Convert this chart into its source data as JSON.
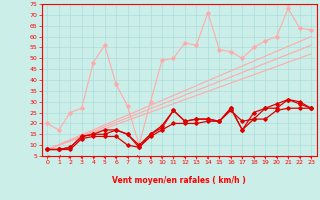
{
  "xlabel": "Vent moyen/en rafales ( km/h )",
  "bg_color": "#cceee8",
  "grid_color": "#aadddd",
  "axis_color": "#ff0000",
  "xlim": [
    -0.5,
    23.5
  ],
  "ylim": [
    5,
    75
  ],
  "yticks": [
    5,
    10,
    15,
    20,
    25,
    30,
    35,
    40,
    45,
    50,
    55,
    60,
    65,
    70,
    75
  ],
  "xticks": [
    0,
    1,
    2,
    3,
    4,
    5,
    6,
    7,
    8,
    9,
    10,
    11,
    12,
    13,
    14,
    15,
    16,
    17,
    18,
    19,
    20,
    21,
    22,
    23
  ],
  "lc_light": "#ffaaaa",
  "lc_dark": "#dd0000",
  "series_light_wavy": [
    [
      0,
      20
    ],
    [
      1,
      17
    ],
    [
      2,
      25
    ],
    [
      3,
      27
    ],
    [
      4,
      48
    ],
    [
      5,
      56
    ],
    [
      6,
      38
    ],
    [
      7,
      28
    ],
    [
      8,
      10
    ],
    [
      9,
      30
    ],
    [
      10,
      49
    ],
    [
      11,
      50
    ],
    [
      12,
      57
    ],
    [
      13,
      56
    ],
    [
      14,
      71
    ],
    [
      15,
      54
    ],
    [
      16,
      53
    ],
    [
      17,
      50
    ],
    [
      18,
      55
    ],
    [
      19,
      58
    ],
    [
      20,
      60
    ],
    [
      21,
      73
    ],
    [
      22,
      64
    ],
    [
      23,
      63
    ]
  ],
  "linear1": [
    [
      0,
      8
    ],
    [
      23,
      52
    ]
  ],
  "linear2": [
    [
      0,
      8
    ],
    [
      23,
      56
    ]
  ],
  "linear3": [
    [
      0,
      8
    ],
    [
      23,
      60
    ]
  ],
  "series_dark1": [
    [
      0,
      8
    ],
    [
      1,
      8
    ],
    [
      2,
      8
    ],
    [
      3,
      13
    ],
    [
      4,
      14
    ],
    [
      5,
      14
    ],
    [
      6,
      14
    ],
    [
      7,
      10
    ],
    [
      8,
      9
    ],
    [
      9,
      14
    ],
    [
      10,
      17
    ],
    [
      11,
      20
    ],
    [
      12,
      20
    ],
    [
      13,
      20
    ],
    [
      14,
      21
    ],
    [
      15,
      21
    ],
    [
      16,
      26
    ],
    [
      17,
      21
    ],
    [
      18,
      22
    ],
    [
      19,
      22
    ],
    [
      20,
      26
    ],
    [
      21,
      27
    ],
    [
      22,
      27
    ],
    [
      23,
      27
    ]
  ],
  "series_dark2": [
    [
      0,
      8
    ],
    [
      1,
      8
    ],
    [
      2,
      9
    ],
    [
      3,
      14
    ],
    [
      4,
      15
    ],
    [
      5,
      15
    ],
    [
      6,
      17
    ],
    [
      7,
      15
    ],
    [
      8,
      9
    ],
    [
      9,
      15
    ],
    [
      10,
      18
    ],
    [
      11,
      26
    ],
    [
      12,
      21
    ],
    [
      13,
      22
    ],
    [
      14,
      22
    ],
    [
      15,
      21
    ],
    [
      16,
      27
    ],
    [
      17,
      17
    ],
    [
      18,
      22
    ],
    [
      19,
      27
    ],
    [
      20,
      27
    ],
    [
      21,
      31
    ],
    [
      22,
      29
    ],
    [
      23,
      27
    ]
  ],
  "series_dark3": [
    [
      0,
      8
    ],
    [
      1,
      8
    ],
    [
      2,
      9
    ],
    [
      3,
      14
    ],
    [
      4,
      15
    ],
    [
      5,
      17
    ],
    [
      6,
      17
    ],
    [
      7,
      15
    ],
    [
      8,
      10
    ],
    [
      9,
      15
    ],
    [
      10,
      19
    ],
    [
      11,
      26
    ],
    [
      12,
      21
    ],
    [
      13,
      22
    ],
    [
      14,
      22
    ],
    [
      15,
      21
    ],
    [
      16,
      27
    ],
    [
      17,
      17
    ],
    [
      18,
      25
    ],
    [
      19,
      27
    ],
    [
      20,
      29
    ],
    [
      21,
      31
    ],
    [
      22,
      30
    ],
    [
      23,
      27
    ]
  ],
  "wind_angles_deg": [
    225,
    220,
    210,
    190,
    150,
    170,
    200,
    160,
    140,
    180,
    185,
    175,
    160,
    170,
    180,
    175,
    165,
    180,
    175,
    170,
    165,
    175,
    170,
    165
  ]
}
